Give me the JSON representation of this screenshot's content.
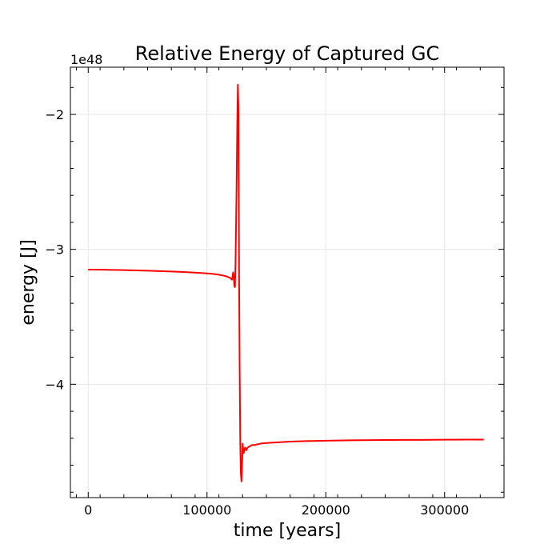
{
  "chart_data": {
    "type": "line",
    "title": "Relative Energy of Captured GC",
    "xlabel": "time [years]",
    "ylabel": "energy [J]",
    "y_offset_label": "1e48",
    "y_scale_factor": 1e+48,
    "xlim": [
      -15000,
      350000
    ],
    "ylim": [
      -4.84,
      -1.65
    ],
    "x_ticks": [
      0,
      100000,
      200000,
      300000
    ],
    "x_tick_labels": [
      "0",
      "100000",
      "200000",
      "300000"
    ],
    "y_ticks": [
      -4,
      -3,
      -2
    ],
    "y_tick_labels": [
      "−4",
      "−3",
      "−2"
    ],
    "grid": true,
    "colors": {
      "line": "#ff0000",
      "grid": "#e6e6e6",
      "axes": "#000000"
    },
    "series": [
      {
        "x": [
          0,
          10000,
          20000,
          30000,
          40000,
          50000,
          60000,
          70000,
          80000,
          90000,
          100000,
          105000,
          110000,
          114000,
          117000,
          119000,
          120000,
          121000,
          121500,
          122000,
          122500,
          123000,
          123500,
          124000,
          124800,
          125500,
          126000,
          126500,
          126700,
          127000,
          127500,
          128000,
          128500,
          129000,
          129500,
          130000,
          130500,
          131000,
          131500,
          132000,
          132500,
          133000,
          133500,
          134000,
          135000,
          136000,
          138000,
          140000,
          145000,
          150000,
          160000,
          170000,
          180000,
          200000,
          220000,
          250000,
          280000,
          300000,
          320000,
          333000
        ],
        "y": [
          -3.15,
          -3.151,
          -3.152,
          -3.154,
          -3.156,
          -3.158,
          -3.161,
          -3.164,
          -3.168,
          -3.172,
          -3.178,
          -3.182,
          -3.188,
          -3.195,
          -3.202,
          -3.21,
          -3.215,
          -3.225,
          -3.2,
          -3.17,
          -3.2,
          -3.27,
          -3.28,
          -3.1,
          -2.6,
          -2.05,
          -1.78,
          -2.0,
          -2.5,
          -3.2,
          -3.9,
          -4.45,
          -4.66,
          -4.72,
          -4.6,
          -4.44,
          -4.49,
          -4.51,
          -4.48,
          -4.47,
          -4.48,
          -4.49,
          -4.48,
          -4.47,
          -4.465,
          -4.46,
          -4.45,
          -4.45,
          -4.44,
          -4.435,
          -4.43,
          -4.425,
          -4.422,
          -4.418,
          -4.415,
          -4.413,
          -4.412,
          -4.411,
          -4.41,
          -4.41
        ]
      }
    ]
  }
}
